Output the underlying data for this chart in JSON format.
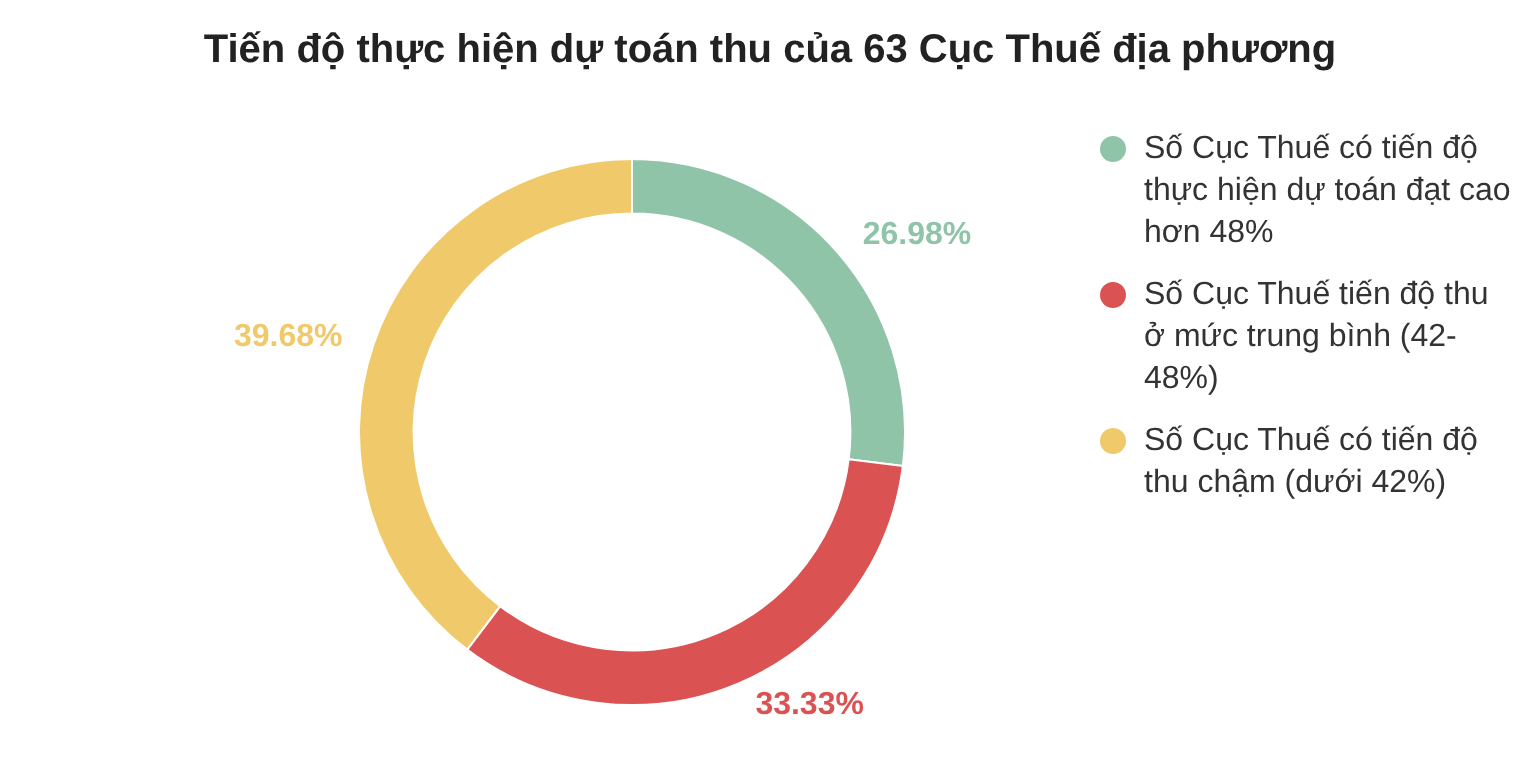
{
  "chart_data": {
    "type": "donut",
    "title": "Tiến độ thực hiện dự toán thu của 63 Cục Thuế địa phương",
    "categories": [
      "Số Cục Thuế có tiến độ thực hiện dự toán đạt cao hơn 48%",
      "Số Cục Thuế tiến độ thu ở mức trung bình (42-48%)",
      "Số Cục Thuế có tiến độ thu chậm (dưới 42%)"
    ],
    "values": [
      26.98,
      33.33,
      39.68
    ],
    "value_labels": [
      "26.98%",
      "33.33%",
      "39.68%"
    ],
    "colors": [
      "#8fc4a8",
      "#db5253",
      "#f0ca6a"
    ],
    "legend": "right"
  }
}
